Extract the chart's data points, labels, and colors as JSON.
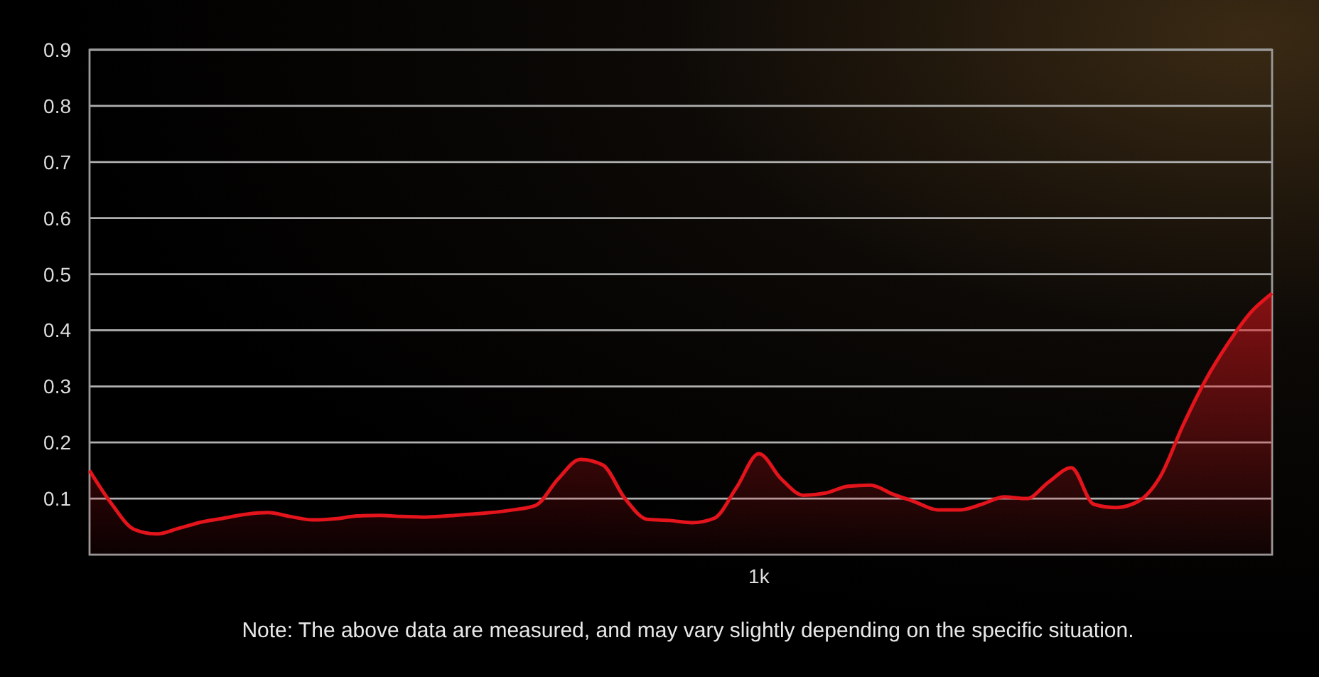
{
  "chart_data": {
    "type": "area",
    "categories": [
      null,
      null,
      null,
      null,
      null,
      null,
      null,
      null,
      null,
      null,
      null,
      null,
      null,
      null,
      null,
      null,
      null,
      null,
      null,
      null,
      null,
      null,
      null,
      null,
      null,
      null,
      null,
      null,
      null,
      null,
      "1k",
      null,
      null,
      null,
      null,
      null,
      null,
      null,
      null,
      null,
      null,
      null,
      null,
      null,
      null,
      null,
      null,
      null,
      null,
      null,
      null,
      null,
      null,
      null
    ],
    "ylim": [
      0,
      0.9
    ],
    "yticks": [
      0.1,
      0.2,
      0.3,
      0.4,
      0.5,
      0.6,
      0.7,
      0.8,
      0.9
    ],
    "grid": "y",
    "series": [
      {
        "color": "#e3141b",
        "values": [
          0.15,
          0.09,
          0.045,
          0.037,
          0.047,
          0.058,
          0.065,
          0.072,
          0.075,
          0.068,
          0.062,
          0.064,
          0.069,
          0.07,
          0.068,
          0.067,
          0.069,
          0.072,
          0.075,
          0.08,
          0.088,
          0.135,
          0.17,
          0.16,
          0.1,
          0.063,
          0.061,
          0.057,
          0.065,
          0.12,
          0.18,
          0.135,
          0.106,
          0.11,
          0.122,
          0.124,
          0.108,
          0.094,
          0.08,
          0.08,
          0.09,
          0.103,
          0.1,
          0.13,
          0.155,
          0.09,
          0.084,
          0.095,
          0.14,
          0.23,
          0.31,
          0.375,
          0.43,
          0.466
        ]
      }
    ],
    "annotations": [
      "Note: The above data are measured, and may  vary slightly depending on the specific situation."
    ]
  }
}
